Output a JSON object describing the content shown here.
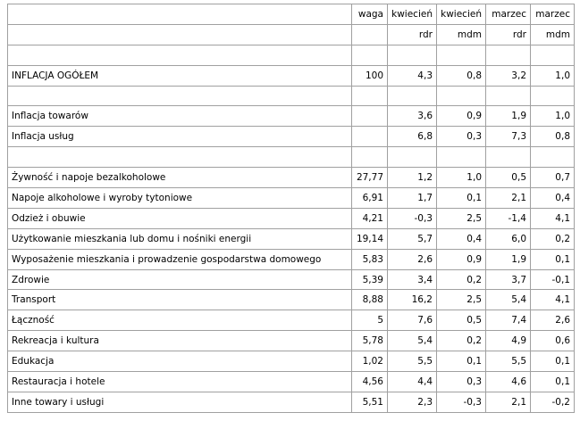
{
  "table": {
    "header": [
      [
        null,
        "waga",
        "kwiecień",
        "kwiecień",
        "marzec",
        "marzec"
      ],
      [
        null,
        null,
        "rdr",
        "mdm",
        "rdr",
        "mdm"
      ]
    ],
    "rows": [
      null,
      [
        "INFLACJA OGÓŁEM",
        "100",
        "4,3",
        "0,8",
        "3,2",
        "1,0"
      ],
      null,
      [
        "Inflacja towarów",
        null,
        "3,6",
        "0,9",
        "1,9",
        "1,0"
      ],
      [
        "Inflacja usług",
        null,
        "6,8",
        "0,3",
        "7,3",
        "0,8"
      ],
      null,
      [
        "Żywność i napoje bezalkoholowe",
        "27,77",
        "1,2",
        "1,0",
        "0,5",
        "0,7"
      ],
      [
        "Napoje alkoholowe i wyroby tytoniowe",
        "6,91",
        "1,7",
        "0,1",
        "2,1",
        "0,4"
      ],
      [
        "Odzież i obuwie",
        "4,21",
        "-0,3",
        "2,5",
        "-1,4",
        "4,1"
      ],
      [
        "Użytkowanie mieszkania lub domu i nośniki energii",
        "19,14",
        "5,7",
        "0,4",
        "6,0",
        "0,2"
      ],
      [
        "Wyposażenie mieszkania i prowadzenie gospodarstwa domowego",
        "5,83",
        "2,6",
        "0,9",
        "1,9",
        "0,1"
      ],
      [
        "Zdrowie",
        "5,39",
        "3,4",
        "0,2",
        "3,7",
        "-0,1"
      ],
      [
        "Transport",
        "8,88",
        "16,2",
        "2,5",
        "5,4",
        "4,1"
      ],
      [
        "Łączność",
        "5",
        "7,6",
        "0,5",
        "7,4",
        "2,6"
      ],
      [
        "Rekreacja i kultura",
        "5,78",
        "5,4",
        "0,2",
        "4,9",
        "0,6"
      ],
      [
        "Edukacja",
        "1,02",
        "5,5",
        "0,1",
        "5,5",
        "0,1"
      ],
      [
        "Restauracja i hotele",
        "4,56",
        "4,4",
        "0,3",
        "4,6",
        "0,1"
      ],
      [
        "Inne towary i usługi",
        "5,51",
        "2,3",
        "-0,3",
        "2,1",
        "-0,2"
      ]
    ]
  }
}
